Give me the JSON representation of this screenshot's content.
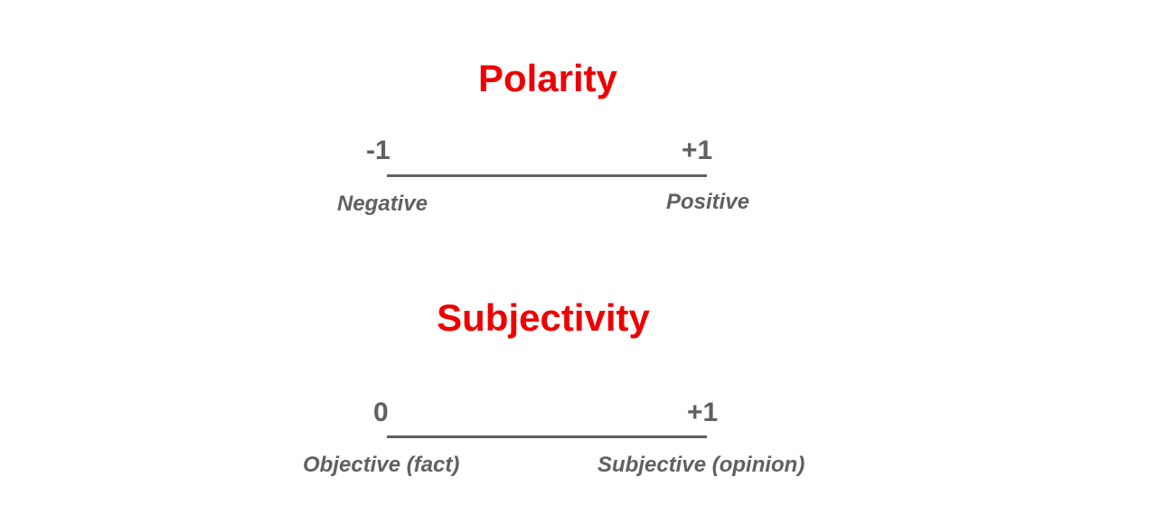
{
  "colors": {
    "title": "#ee0000",
    "text": "#606060",
    "line": "#606060"
  },
  "polarity": {
    "title": "Polarity",
    "min_label": "-1",
    "max_label": "+1",
    "min_caption": "Negative",
    "max_caption": "Positive"
  },
  "subjectivity": {
    "title": "Subjectivity",
    "min_label": "0",
    "max_label": "+1",
    "min_caption": "Objective (fact)",
    "max_caption": "Subjective (opinion)"
  }
}
